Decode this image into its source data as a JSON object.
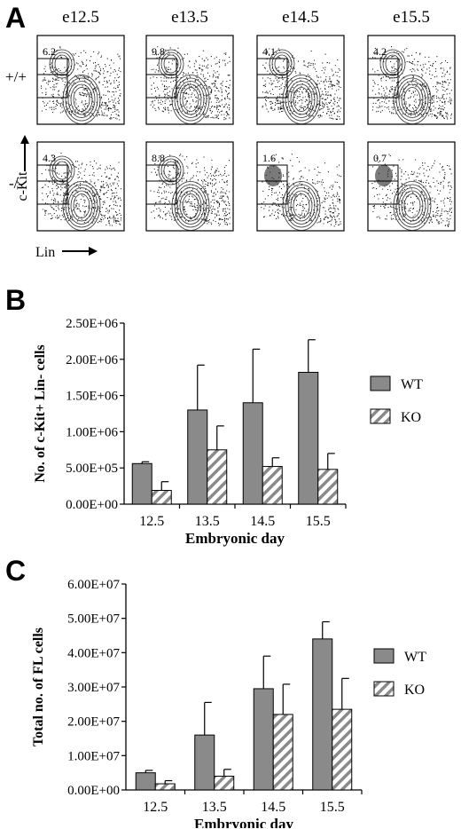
{
  "panels": {
    "a": {
      "letter": "A"
    },
    "b": {
      "letter": "B"
    },
    "c": {
      "letter": "C"
    }
  },
  "flow": {
    "columns": [
      "e12.5",
      "e13.5",
      "e14.5",
      "e15.5"
    ],
    "rows": [
      "+/+",
      "-/-"
    ],
    "gate_percent": [
      [
        "6.2",
        "9.8",
        "4.1",
        "4.2"
      ],
      [
        "4.3",
        "8.8",
        "1.6",
        "0.7"
      ]
    ],
    "y_axis_label": "c-Kit",
    "x_axis_label": "Lin"
  },
  "chart_data": [
    {
      "type": "bar",
      "ylabel": "No. of c-Kit+ Lin- cells",
      "xlabel": "Embryonic day",
      "categories": [
        "12.5",
        "13.5",
        "14.5",
        "15.5"
      ],
      "yticks": [
        "0.00E+00",
        "5.00E+05",
        "1.00E+06",
        "1.50E+06",
        "2.00E+06",
        "2.50E+06"
      ],
      "ylim": [
        0,
        2500000
      ],
      "legend_position": "right",
      "series": [
        {
          "name": "WT",
          "values": [
            560000,
            1300000,
            1400000,
            1820000
          ],
          "errors": [
            25000,
            620000,
            740000,
            450000
          ],
          "fill": "#8a8a8a"
        },
        {
          "name": "KO",
          "values": [
            190000,
            750000,
            520000,
            480000
          ],
          "errors": [
            120000,
            330000,
            120000,
            220000
          ],
          "fill": "hatch"
        }
      ]
    },
    {
      "type": "bar",
      "ylabel": "Total no. of FL cells",
      "xlabel": "Embryonic day",
      "categories": [
        "12.5",
        "13.5",
        "14.5",
        "15.5"
      ],
      "yticks": [
        "0.00E+00",
        "1.00E+07",
        "2.00E+07",
        "3.00E+07",
        "4.00E+07",
        "5.00E+07",
        "6.00E+07"
      ],
      "ylim": [
        0,
        60000000
      ],
      "legend_position": "right",
      "series": [
        {
          "name": "WT",
          "values": [
            5000000,
            16000000,
            29500000,
            44000000
          ],
          "errors": [
            700000,
            9500000,
            9500000,
            5000000
          ],
          "fill": "#8a8a8a"
        },
        {
          "name": "KO",
          "values": [
            1800000,
            4000000,
            22000000,
            23500000
          ],
          "errors": [
            900000,
            2000000,
            8800000,
            9000000
          ],
          "fill": "hatch"
        }
      ]
    }
  ]
}
